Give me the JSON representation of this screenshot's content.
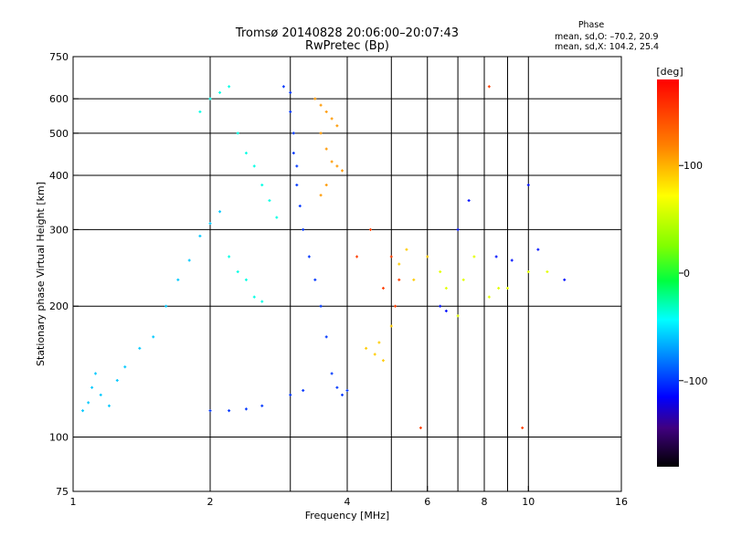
{
  "header": {
    "title_line1": "Tromsø 20140828 20:06:00–20:07:43",
    "title_line2": "RwPretec (Bp)",
    "phase_title": "Phase",
    "phase_line1": "mean, sd,O: –70.2, 20.9",
    "phase_line2": "mean, sd,X: 104.2, 25.4"
  },
  "chart_data": {
    "type": "scatter",
    "xlabel": "Frequency [MHz]",
    "ylabel": "Stationary phase Virtual Height [km]",
    "xscale": "log",
    "yscale": "log",
    "xlim": [
      1,
      16
    ],
    "ylim": [
      75,
      750
    ],
    "x_ticks": [
      1,
      2,
      4,
      6,
      8,
      10,
      16
    ],
    "x_ticks_minor": [
      3,
      5,
      7,
      9
    ],
    "x_tick_labels": [
      "1",
      "2",
      "4",
      "6",
      "8",
      "10",
      "16"
    ],
    "y_ticks": [
      75,
      100,
      200,
      300,
      400,
      500,
      600,
      750
    ],
    "y_tick_labels": [
      "75",
      "100",
      "200",
      "300",
      "400",
      "500",
      "600",
      "750"
    ],
    "colorbar": {
      "label": "[deg]",
      "range": [
        -180,
        180
      ],
      "ticks": [
        100,
        0,
        -100
      ],
      "tick_labels": [
        "100",
        "0",
        "–100"
      ]
    },
    "series": [
      {
        "phase": -60,
        "points": [
          [
            1.05,
            115
          ],
          [
            1.08,
            120
          ],
          [
            1.1,
            130
          ],
          [
            1.12,
            140
          ],
          [
            1.15,
            125
          ],
          [
            1.2,
            118
          ],
          [
            1.25,
            135
          ],
          [
            1.3,
            145
          ],
          [
            1.4,
            160
          ],
          [
            1.5,
            170
          ],
          [
            1.6,
            200
          ],
          [
            1.7,
            230
          ],
          [
            1.8,
            255
          ],
          [
            1.9,
            290
          ],
          [
            2.0,
            310
          ],
          [
            2.1,
            330
          ]
        ]
      },
      {
        "phase": -40,
        "points": [
          [
            1.9,
            560
          ],
          [
            2.0,
            600
          ],
          [
            2.1,
            620
          ],
          [
            2.2,
            640
          ],
          [
            2.3,
            500
          ],
          [
            2.4,
            450
          ],
          [
            2.5,
            420
          ],
          [
            2.6,
            380
          ],
          [
            2.7,
            350
          ],
          [
            2.8,
            320
          ],
          [
            2.2,
            260
          ],
          [
            2.3,
            240
          ],
          [
            2.4,
            230
          ],
          [
            2.5,
            210
          ],
          [
            2.6,
            205
          ]
        ]
      },
      {
        "phase": -100,
        "points": [
          [
            2.9,
            640
          ],
          [
            3.0,
            620
          ],
          [
            3.0,
            560
          ],
          [
            3.05,
            500
          ],
          [
            3.05,
            450
          ],
          [
            3.1,
            420
          ],
          [
            3.1,
            380
          ],
          [
            3.15,
            340
          ],
          [
            3.2,
            300
          ],
          [
            3.3,
            260
          ],
          [
            3.4,
            230
          ],
          [
            3.5,
            200
          ],
          [
            3.6,
            170
          ],
          [
            3.7,
            140
          ],
          [
            3.8,
            130
          ],
          [
            3.9,
            125
          ],
          [
            4.0,
            128
          ],
          [
            3.2,
            128
          ],
          [
            3.0,
            125
          ],
          [
            2.6,
            118
          ],
          [
            2.4,
            116
          ],
          [
            2.2,
            115
          ],
          [
            2.0,
            115
          ]
        ]
      },
      {
        "phase": 110,
        "points": [
          [
            3.4,
            600
          ],
          [
            3.5,
            580
          ],
          [
            3.6,
            560
          ],
          [
            3.7,
            540
          ],
          [
            3.8,
            520
          ],
          [
            3.5,
            500
          ],
          [
            3.6,
            460
          ],
          [
            3.7,
            430
          ],
          [
            3.8,
            420
          ],
          [
            3.9,
            410
          ],
          [
            3.6,
            380
          ],
          [
            3.5,
            360
          ]
        ]
      },
      {
        "phase": 90,
        "points": [
          [
            4.4,
            160
          ],
          [
            4.6,
            155
          ],
          [
            4.7,
            165
          ],
          [
            4.8,
            150
          ],
          [
            5.0,
            180
          ],
          [
            5.2,
            250
          ],
          [
            5.4,
            270
          ],
          [
            5.6,
            230
          ],
          [
            6.0,
            260
          ]
        ]
      },
      {
        "phase": 60,
        "points": [
          [
            6.4,
            240
          ],
          [
            6.6,
            220
          ],
          [
            7.0,
            190
          ],
          [
            7.2,
            230
          ],
          [
            7.6,
            260
          ],
          [
            8.2,
            210
          ],
          [
            8.6,
            220
          ],
          [
            9.0,
            220
          ],
          [
            10.0,
            240
          ],
          [
            11.0,
            240
          ]
        ]
      },
      {
        "phase": -110,
        "points": [
          [
            6.4,
            200
          ],
          [
            6.6,
            195
          ],
          [
            7.0,
            300
          ],
          [
            7.4,
            350
          ],
          [
            8.5,
            260
          ],
          [
            9.2,
            255
          ],
          [
            10.0,
            380
          ],
          [
            10.5,
            270
          ],
          [
            12.0,
            230
          ]
        ]
      },
      {
        "phase": 150,
        "points": [
          [
            5.1,
            200
          ],
          [
            5.0,
            260
          ],
          [
            4.8,
            220
          ],
          [
            4.5,
            300
          ],
          [
            4.2,
            260
          ],
          [
            5.2,
            230
          ],
          [
            5.8,
            105
          ],
          [
            9.7,
            105
          ],
          [
            8.2,
            640
          ]
        ]
      }
    ]
  }
}
